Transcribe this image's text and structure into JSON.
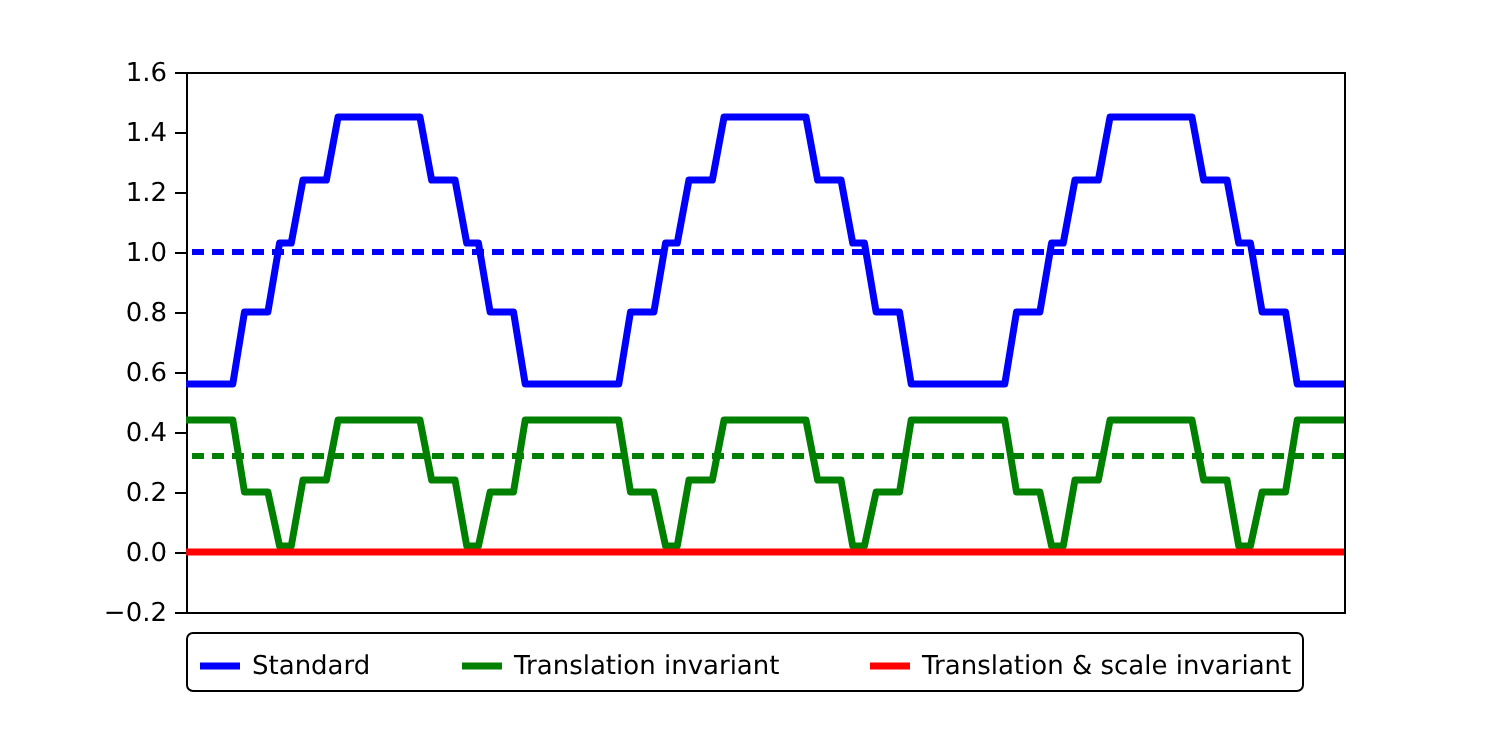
{
  "chart_data": {
    "type": "line",
    "categories": [
      null,
      null,
      null,
      null,
      null,
      null,
      null,
      null,
      null,
      null,
      null,
      null,
      null,
      null,
      null,
      null,
      null,
      null,
      null,
      null,
      null,
      null,
      null,
      null,
      null,
      null,
      null,
      null,
      null,
      null,
      null,
      null,
      null,
      null,
      null,
      null,
      null,
      null,
      null,
      null,
      null,
      null,
      null,
      null,
      null,
      null,
      null,
      null,
      null,
      null,
      null,
      null,
      null,
      null,
      null,
      null,
      null,
      null,
      null,
      null,
      null,
      null,
      null,
      null,
      null,
      null,
      null,
      null,
      null,
      null,
      null,
      null,
      null,
      null,
      null,
      null,
      null,
      null,
      null,
      null,
      null,
      null,
      null,
      null,
      null,
      null,
      null,
      null,
      null,
      null,
      null,
      null,
      null,
      null,
      null,
      null,
      null,
      null,
      null,
      null
    ],
    "series": [
      {
        "name": "Standard",
        "color": "#0000ff",
        "values": [
          0.56,
          0.56,
          0.56,
          0.56,
          0.56,
          0.8,
          0.8,
          0.8,
          1.03,
          1.03,
          1.24,
          1.24,
          1.24,
          1.45,
          1.45,
          1.45,
          1.45,
          1.45,
          1.45,
          1.45,
          1.45,
          1.24,
          1.24,
          1.24,
          1.03,
          1.03,
          0.8,
          0.8,
          0.8,
          0.56,
          0.56,
          0.56,
          0.56,
          0.56,
          0.56,
          0.56,
          0.56,
          0.56,
          0.8,
          0.8,
          0.8,
          1.03,
          1.03,
          1.24,
          1.24,
          1.24,
          1.45,
          1.45,
          1.45,
          1.45,
          1.45,
          1.45,
          1.45,
          1.45,
          1.24,
          1.24,
          1.24,
          1.03,
          1.03,
          0.8,
          0.8,
          0.8,
          0.56,
          0.56,
          0.56,
          0.56,
          0.56,
          0.56,
          0.56,
          0.56,
          0.56,
          0.8,
          0.8,
          0.8,
          1.03,
          1.03,
          1.24,
          1.24,
          1.24,
          1.45,
          1.45,
          1.45,
          1.45,
          1.45,
          1.45,
          1.45,
          1.45,
          1.24,
          1.24,
          1.24,
          1.03,
          1.03,
          0.8,
          0.8,
          0.8,
          0.56,
          0.56,
          0.56,
          0.56,
          0.56
        ]
      },
      {
        "name": "Translation invariant",
        "color": "#008000",
        "values": [
          0.44,
          0.44,
          0.44,
          0.44,
          0.44,
          0.2,
          0.2,
          0.2,
          0.02,
          0.02,
          0.24,
          0.24,
          0.24,
          0.44,
          0.44,
          0.44,
          0.44,
          0.44,
          0.44,
          0.44,
          0.44,
          0.24,
          0.24,
          0.24,
          0.02,
          0.02,
          0.2,
          0.2,
          0.2,
          0.44,
          0.44,
          0.44,
          0.44,
          0.44,
          0.44,
          0.44,
          0.44,
          0.44,
          0.2,
          0.2,
          0.2,
          0.02,
          0.02,
          0.24,
          0.24,
          0.24,
          0.44,
          0.44,
          0.44,
          0.44,
          0.44,
          0.44,
          0.44,
          0.44,
          0.24,
          0.24,
          0.24,
          0.02,
          0.02,
          0.2,
          0.2,
          0.2,
          0.44,
          0.44,
          0.44,
          0.44,
          0.44,
          0.44,
          0.44,
          0.44,
          0.44,
          0.2,
          0.2,
          0.2,
          0.02,
          0.02,
          0.24,
          0.24,
          0.24,
          0.44,
          0.44,
          0.44,
          0.44,
          0.44,
          0.44,
          0.44,
          0.44,
          0.24,
          0.24,
          0.24,
          0.02,
          0.02,
          0.2,
          0.2,
          0.2,
          0.44,
          0.44,
          0.44,
          0.44,
          0.44
        ]
      },
      {
        "name": "Translation & scale invariant",
        "color": "#ff0000",
        "values": [
          0,
          0,
          0,
          0,
          0,
          0,
          0,
          0,
          0,
          0,
          0,
          0,
          0,
          0,
          0,
          0,
          0,
          0,
          0,
          0,
          0,
          0,
          0,
          0,
          0,
          0,
          0,
          0,
          0,
          0,
          0,
          0,
          0,
          0,
          0,
          0,
          0,
          0,
          0,
          0,
          0,
          0,
          0,
          0,
          0,
          0,
          0,
          0,
          0,
          0,
          0,
          0,
          0,
          0,
          0,
          0,
          0,
          0,
          0,
          0,
          0,
          0,
          0,
          0,
          0,
          0,
          0,
          0,
          0,
          0,
          0,
          0,
          0,
          0,
          0,
          0,
          0,
          0,
          0,
          0,
          0,
          0,
          0,
          0,
          0,
          0,
          0,
          0,
          0,
          0,
          0,
          0,
          0,
          0,
          0,
          0,
          0,
          0,
          0,
          0
        ]
      }
    ],
    "ylim": [
      -0.2,
      1.6
    ],
    "yticks": [
      {
        "value": -0.2,
        "label": "−0.2"
      },
      {
        "value": 0,
        "label": "0.0"
      },
      0.2,
      0.4,
      0.6,
      0.8,
      {
        "value": 1,
        "label": "1.0"
      },
      1.2,
      1.4,
      1.6
    ],
    "ref_lines": [
      {
        "axis": "y",
        "value": 1.0,
        "color": "#0000ff",
        "line_style": "dashed"
      },
      {
        "axis": "y",
        "value": 0.32,
        "color": "#008000",
        "line_style": "dashed"
      }
    ],
    "legend": "bottom",
    "tick_labels": "y"
  }
}
